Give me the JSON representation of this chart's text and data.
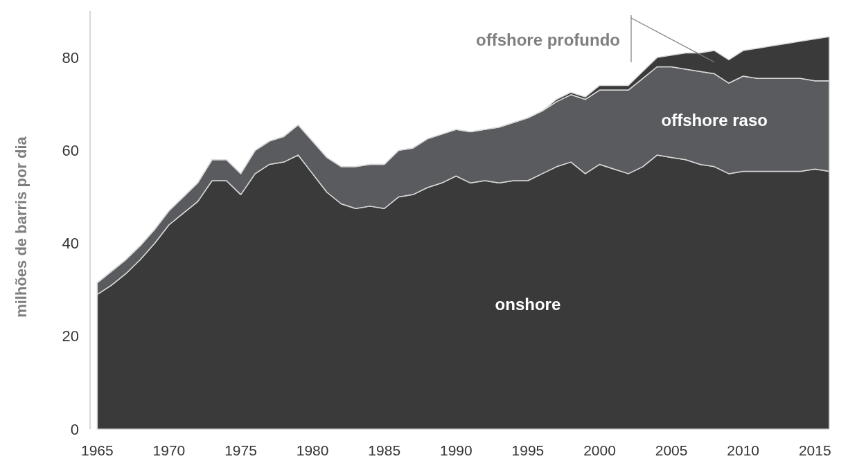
{
  "chart_data": {
    "type": "area",
    "stacked": true,
    "ylabel": "milhões de barris por dia",
    "x": [
      1965,
      1966,
      1967,
      1968,
      1969,
      1970,
      1971,
      1972,
      1973,
      1974,
      1975,
      1976,
      1977,
      1978,
      1979,
      1980,
      1981,
      1982,
      1983,
      1984,
      1985,
      1986,
      1987,
      1988,
      1989,
      1990,
      1991,
      1992,
      1993,
      1994,
      1995,
      1996,
      1997,
      1998,
      1999,
      2000,
      2001,
      2002,
      2003,
      2004,
      2005,
      2006,
      2007,
      2008,
      2009,
      2010,
      2011,
      2012,
      2013,
      2014,
      2015,
      2016
    ],
    "series": [
      {
        "name": "onshore",
        "color": "#3a3a3a",
        "values": [
          29,
          31,
          33.5,
          36.5,
          40,
          44,
          46.5,
          49,
          53.5,
          53.5,
          50.5,
          55,
          57,
          57.5,
          59,
          55,
          51,
          48.5,
          47.5,
          48,
          47.5,
          50,
          50.5,
          52,
          53,
          54.5,
          53,
          53.5,
          53,
          53.5,
          53.5,
          55,
          56.5,
          57.5,
          55,
          57,
          56,
          55,
          56.5,
          59,
          58.5,
          58,
          57,
          56.5,
          55,
          55.5,
          55.5,
          55.5,
          55.5,
          55.5,
          56,
          55.5
        ]
      },
      {
        "name": "offshore raso",
        "color": "#595b5e",
        "values": [
          2.5,
          3,
          3,
          3,
          3,
          3,
          3.5,
          4,
          4.5,
          4.5,
          4.5,
          5,
          5,
          5.5,
          6.5,
          7,
          7.5,
          8,
          9,
          9,
          9.5,
          10,
          10,
          10.5,
          10.5,
          10,
          11,
          11,
          12,
          12.5,
          13.5,
          13.5,
          14,
          14.5,
          16,
          16,
          17,
          18,
          19,
          19,
          19.5,
          19.5,
          20,
          20,
          19.5,
          20.5,
          20,
          20,
          20,
          20,
          19,
          19.5
        ]
      },
      {
        "name": "offshore profundo",
        "color": "#3a3a3a",
        "values": [
          0,
          0,
          0,
          0,
          0,
          0,
          0,
          0,
          0,
          0,
          0,
          0,
          0,
          0,
          0,
          0,
          0,
          0,
          0,
          0,
          0,
          0,
          0,
          0,
          0,
          0,
          0,
          0,
          0,
          0,
          0,
          0,
          0.5,
          0.5,
          0.5,
          1,
          1,
          1,
          1.5,
          2,
          2.5,
          3.5,
          4,
          5,
          5,
          5.5,
          6.5,
          7,
          7.5,
          8,
          9,
          9.5
        ]
      }
    ],
    "xlim": [
      1964.5,
      2016
    ],
    "xticks": [
      1965,
      1970,
      1975,
      1980,
      1985,
      1990,
      1995,
      2000,
      2005,
      2010,
      2015
    ],
    "ylim": [
      0,
      90
    ],
    "yticks": [
      0,
      20,
      40,
      60,
      80
    ]
  }
}
